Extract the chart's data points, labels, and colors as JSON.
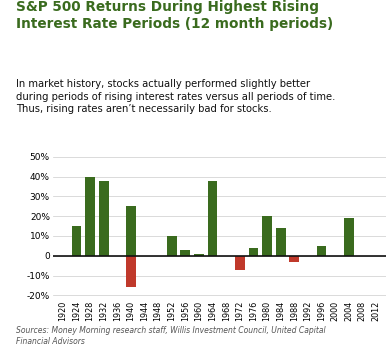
{
  "categories": [
    "1920",
    "1924",
    "1928",
    "1932",
    "1936",
    "1940",
    "1944",
    "1948",
    "1952",
    "1956",
    "1960",
    "1964",
    "1968",
    "1972",
    "1976",
    "1980",
    "1984",
    "1988",
    "1992",
    "1996",
    "2000",
    "2004",
    "2008",
    "2012"
  ],
  "bar_heights": [
    0,
    15,
    40,
    38,
    0,
    25,
    0,
    0,
    10,
    3,
    1,
    38,
    0,
    -7,
    4,
    20,
    14,
    -3,
    0,
    5,
    0,
    19,
    0,
    0
  ],
  "bar_colors": [
    "none",
    "#3a6b1e",
    "#3a6b1e",
    "#3a6b1e",
    "none",
    "#3a6b1e",
    "none",
    "none",
    "#3a6b1e",
    "#3a6b1e",
    "#3a6b1e",
    "#3a6b1e",
    "none",
    "#c0392b",
    "#3a6b1e",
    "#3a6b1e",
    "#3a6b1e",
    "#c0392b",
    "none",
    "#3a6b1e",
    "none",
    "#3a6b1e",
    "none",
    "none"
  ],
  "neg_1940": -16,
  "neg_1940_color": "#c0392b",
  "title_line1": "S&P 500 Returns During Highest Rising",
  "title_line2": "Interest Rate Periods (12 month periods)",
  "subtitle": "In market history, stocks actually performed slightly better\nduring periods of rising interest rates versus all periods of time.\nThus, rising rates aren’t necessarily bad for stocks.",
  "source": "Sources: Money Morning research staff, Willis Investment Council, United Capital\nFinancial Advisors",
  "title_color": "#3a6b1e",
  "ylim": [
    -22,
    55
  ],
  "yticks": [
    -20,
    -10,
    0,
    10,
    20,
    30,
    40,
    50
  ],
  "ytick_labels": [
    "-20%",
    "-10%",
    "0",
    "10%",
    "20%",
    "30%",
    "40%",
    "50%"
  ],
  "bar_width": 0.72,
  "bg_color": "#ffffff",
  "grid_color": "#cccccc"
}
